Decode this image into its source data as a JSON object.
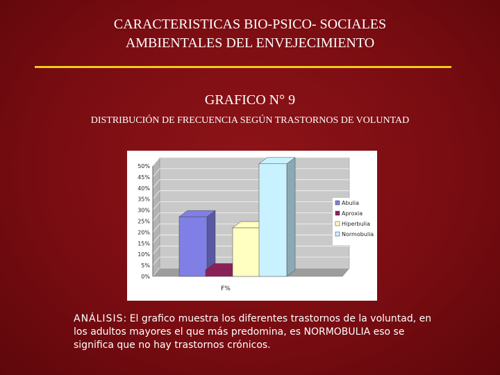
{
  "slide": {
    "title_line1": "CARACTERISTICAS BIO-PSICO- SOCIALES",
    "title_line2": "AMBIENTALES DEL ENVEJECIMIENTO",
    "graph_number": "GRAFICO N° 9",
    "chart_heading": "DISTRIBUCIÓN DE FRECUENCIA SEGÚN TRASTORNOS DE VOLUNTAD",
    "analysis_label": "ANÁLISIS",
    "analysis_text": ": El grafico muestra los diferentes trastornos de la voluntad, en los adultos mayores  el que más predomina, es NORMOBULIA eso se significa que no hay trastornos crónicos.",
    "colors": {
      "background": "#7a0d12",
      "rule": "#f2cc1c",
      "text": "#ffffff"
    }
  },
  "chart_data": {
    "type": "bar",
    "categories": [
      "F%"
    ],
    "series": [
      {
        "name": "Abulia",
        "values": [
          27
        ],
        "color": "#7f7fe6"
      },
      {
        "name": "Aproxia",
        "values": [
          3
        ],
        "color": "#8b2158"
      },
      {
        "name": "Hiperbulia",
        "values": [
          22
        ],
        "color": "#ffffc2"
      },
      {
        "name": "Normobulia",
        "values": [
          51
        ],
        "color": "#c8f2ff"
      }
    ],
    "y_ticks": [
      "0%",
      "5%",
      "10%",
      "15%",
      "20%",
      "25%",
      "30%",
      "35%",
      "40%",
      "45%",
      "50%"
    ],
    "ylim": [
      0,
      50
    ],
    "grid": true,
    "legend_position": "right",
    "three_d": true
  }
}
